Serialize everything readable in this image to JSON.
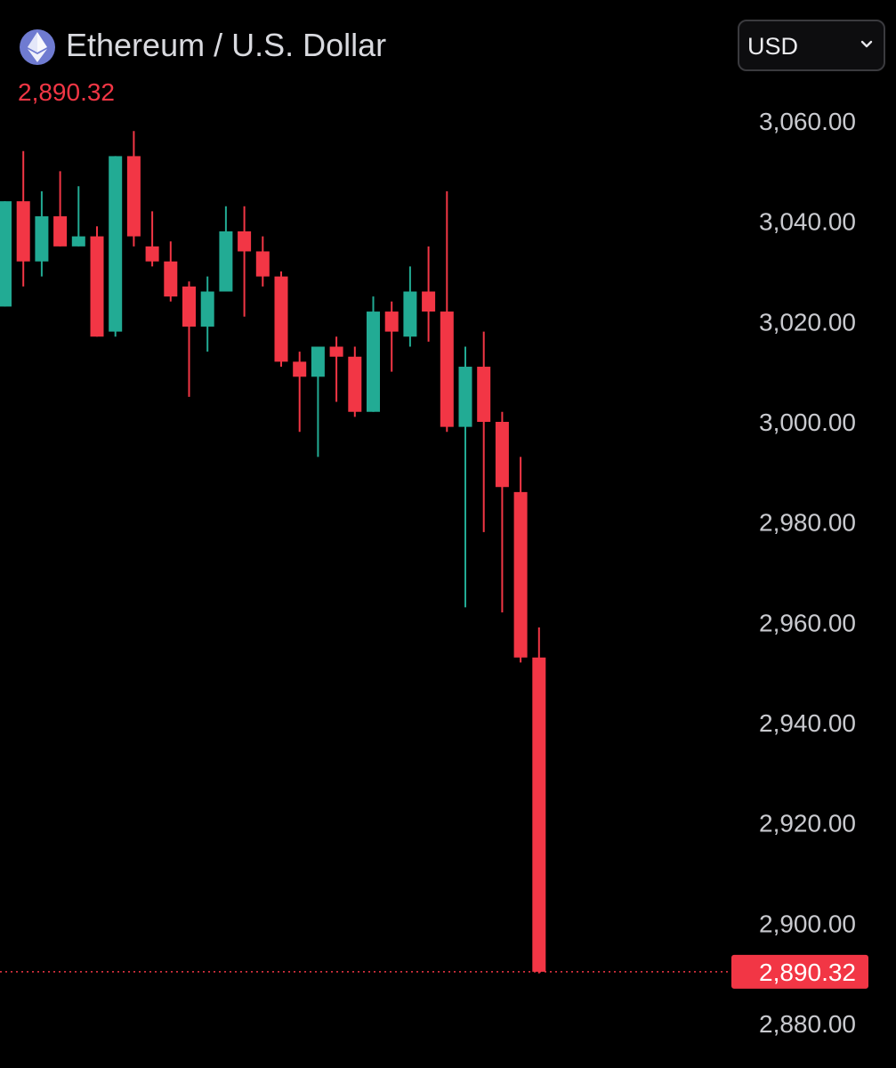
{
  "header": {
    "title": "Ethereum / U.S. Dollar",
    "last_price": "2,890.32",
    "logo_icon": "ethereum-icon",
    "currency_select": {
      "value": "USD",
      "icon": "chevron-down-icon"
    }
  },
  "colors": {
    "background": "#000000",
    "up": "#22ab94",
    "down": "#f23645",
    "axis_text": "#c9cacf",
    "last_price_line": "#f23645"
  },
  "chart_data": {
    "type": "candlestick",
    "title": "Ethereum / U.S. Dollar",
    "ylim": [
      2876,
      3076
    ],
    "yticks": [
      "3,060.00",
      "3,040.00",
      "3,020.00",
      "3,000.00",
      "2,980.00",
      "2,960.00",
      "2,940.00",
      "2,920.00",
      "2,900.00",
      "2,880.00"
    ],
    "ytick_values": [
      3060,
      3040,
      3020,
      3000,
      2980,
      2960,
      2940,
      2920,
      2900,
      2880
    ],
    "last_price": {
      "value": 2890.32,
      "label": "2,890.32"
    },
    "candles": [
      {
        "o": 3023,
        "h": 3044,
        "l": 3023,
        "c": 3044
      },
      {
        "o": 3044,
        "h": 3054,
        "l": 3027,
        "c": 3032
      },
      {
        "o": 3032,
        "h": 3046,
        "l": 3029,
        "c": 3041
      },
      {
        "o": 3041,
        "h": 3050,
        "l": 3035,
        "c": 3035
      },
      {
        "o": 3035,
        "h": 3047,
        "l": 3035,
        "c": 3037
      },
      {
        "o": 3037,
        "h": 3039,
        "l": 3017,
        "c": 3017
      },
      {
        "o": 3018,
        "h": 3053,
        "l": 3017,
        "c": 3053
      },
      {
        "o": 3053,
        "h": 3058,
        "l": 3035,
        "c": 3037
      },
      {
        "o": 3035,
        "h": 3042,
        "l": 3031,
        "c": 3032
      },
      {
        "o": 3032,
        "h": 3036,
        "l": 3024,
        "c": 3025
      },
      {
        "o": 3027,
        "h": 3028,
        "l": 3005,
        "c": 3019
      },
      {
        "o": 3019,
        "h": 3029,
        "l": 3014,
        "c": 3026
      },
      {
        "o": 3026,
        "h": 3043,
        "l": 3026,
        "c": 3038
      },
      {
        "o": 3038,
        "h": 3043,
        "l": 3021,
        "c": 3034
      },
      {
        "o": 3034,
        "h": 3037,
        "l": 3027,
        "c": 3029
      },
      {
        "o": 3029,
        "h": 3030,
        "l": 3011,
        "c": 3012
      },
      {
        "o": 3012,
        "h": 3014,
        "l": 2998,
        "c": 3009
      },
      {
        "o": 3009,
        "h": 3015,
        "l": 2993,
        "c": 3015
      },
      {
        "o": 3015,
        "h": 3017,
        "l": 3004,
        "c": 3013
      },
      {
        "o": 3013,
        "h": 3015,
        "l": 3001,
        "c": 3002
      },
      {
        "o": 3002,
        "h": 3025,
        "l": 3002,
        "c": 3022
      },
      {
        "o": 3022,
        "h": 3024,
        "l": 3010,
        "c": 3018
      },
      {
        "o": 3017,
        "h": 3031,
        "l": 3015,
        "c": 3026
      },
      {
        "o": 3026,
        "h": 3035,
        "l": 3016,
        "c": 3022
      },
      {
        "o": 3022,
        "h": 3046,
        "l": 2998,
        "c": 2999
      },
      {
        "o": 2999,
        "h": 3015,
        "l": 2963,
        "c": 3011
      },
      {
        "o": 3011,
        "h": 3018,
        "l": 2978,
        "c": 3000
      },
      {
        "o": 3000,
        "h": 3002,
        "l": 2962,
        "c": 2987
      },
      {
        "o": 2986,
        "h": 2993,
        "l": 2952,
        "c": 2953
      },
      {
        "o": 2953,
        "h": 2959,
        "l": 2890,
        "c": 2890.32
      }
    ]
  }
}
